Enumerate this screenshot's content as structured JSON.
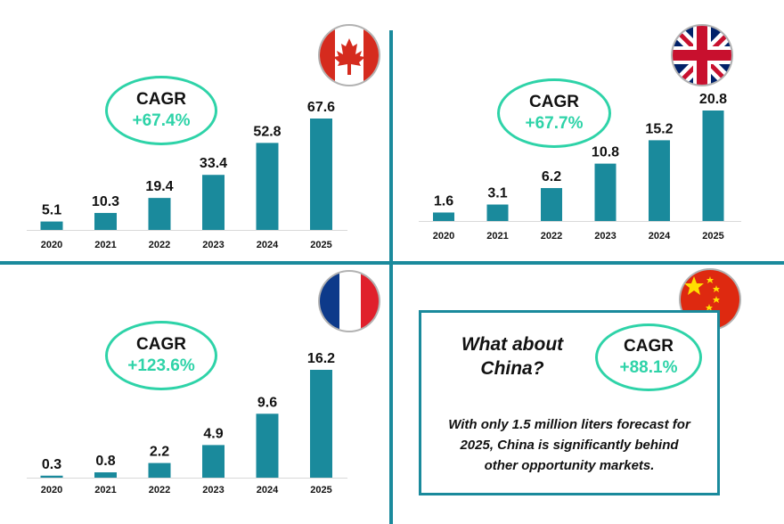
{
  "colors": {
    "bar": "#1a8a9c",
    "divider": "#1a8a9c",
    "cagr_outline": "#2ed3a8",
    "cagr_text": "#2ed3a8"
  },
  "chart_data": [
    {
      "type": "bar",
      "market": "Canada",
      "flag_icon": "canada-flag-icon",
      "categories": [
        "2020",
        "2021",
        "2022",
        "2023",
        "2024",
        "2025"
      ],
      "values": [
        5.1,
        10.3,
        19.4,
        33.4,
        52.8,
        67.6
      ],
      "value_labels": [
        "5.1",
        "10.3",
        "19.4",
        "33.4",
        "52.8",
        "67.6"
      ],
      "cagr_label": "CAGR",
      "cagr_value": "+67.4%",
      "ylim": [
        0,
        67.6
      ],
      "grid": false
    },
    {
      "type": "bar",
      "market": "United Kingdom",
      "flag_icon": "uk-flag-icon",
      "categories": [
        "2020",
        "2021",
        "2022",
        "2023",
        "2024",
        "2025"
      ],
      "values": [
        1.6,
        3.1,
        6.2,
        10.8,
        15.2,
        20.8
      ],
      "value_labels": [
        "1.6",
        "3.1",
        "6.2",
        "10.8",
        "15.2",
        "20.8"
      ],
      "cagr_label": "CAGR",
      "cagr_value": "+67.7%",
      "ylim": [
        0,
        20.8
      ],
      "grid": false
    },
    {
      "type": "bar",
      "market": "France",
      "flag_icon": "france-flag-icon",
      "categories": [
        "2020",
        "2021",
        "2022",
        "2023",
        "2024",
        "2025"
      ],
      "values": [
        0.3,
        0.8,
        2.2,
        4.9,
        9.6,
        16.2
      ],
      "value_labels": [
        "0.3",
        "0.8",
        "2.2",
        "4.9",
        "9.6",
        "16.2"
      ],
      "cagr_label": "CAGR",
      "cagr_value": "+123.6%",
      "ylim": [
        0,
        16.2
      ],
      "grid": false
    }
  ],
  "china": {
    "flag_icon": "china-flag-icon",
    "title_line1": "What about",
    "title_line2": "China?",
    "cagr_label": "CAGR",
    "cagr_value": "+88.1%",
    "note_line1": "With only 1.5 million liters forecast for",
    "note_line2": "2025, China is significantly behind",
    "note_line3": "other opportunity markets."
  }
}
